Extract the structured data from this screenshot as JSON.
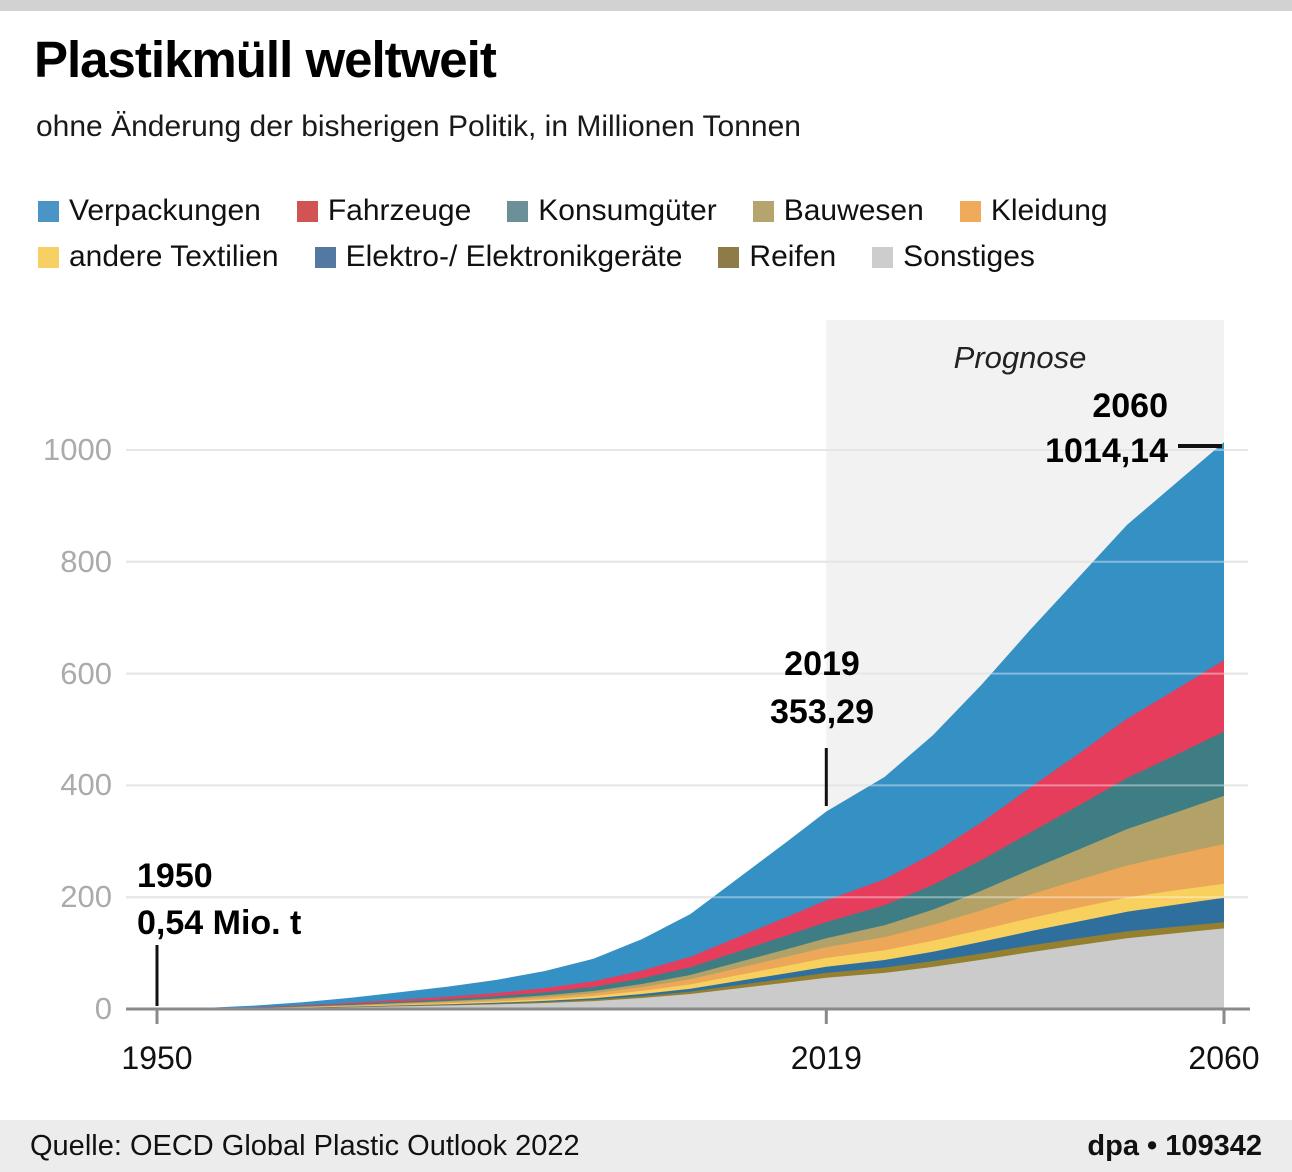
{
  "header": {
    "title": "Plastikmüll weltweit",
    "subtitle": "ohne Änderung der bisherigen Politik, in Millionen Tonnen"
  },
  "footer": {
    "source": "Quelle: OECD Global Plastic Outlook 2022",
    "credit": "dpa • 109342"
  },
  "chart_data": {
    "type": "area",
    "stacked": true,
    "title": "Plastikmüll weltweit",
    "subtitle": "ohne Änderung der bisherigen Politik, in Millionen Tonnen",
    "unit": "Millionen Tonnen",
    "xlabel": "",
    "ylabel": "",
    "ylim": [
      0,
      1050
    ],
    "xlim": [
      1950,
      2060
    ],
    "grid": true,
    "legend_position": "top",
    "x": [
      1950,
      1955,
      1960,
      1965,
      1970,
      1975,
      1980,
      1985,
      1990,
      1995,
      2000,
      2005,
      2010,
      2015,
      2019,
      2025,
      2030,
      2035,
      2040,
      2045,
      2050,
      2055,
      2060
    ],
    "totals": [
      0.54,
      2,
      6,
      12,
      20,
      30,
      40,
      52,
      68,
      90,
      125,
      170,
      235,
      300,
      353.29,
      415,
      490,
      580,
      678,
      772,
      866,
      940,
      1014.14
    ],
    "series": [
      {
        "name": "Verpackungen",
        "swatch_color": "#4a94c8",
        "color": "#3590c4",
        "share_2019": 0.45,
        "share_2060": 0.3845,
        "value_2019": 159,
        "value_2060": 390
      },
      {
        "name": "Fahrzeuge",
        "swatch_color": "#d15452",
        "color": "#e63d5c",
        "share_2019": 0.11,
        "share_2060": 0.1262,
        "value_2019": 39,
        "value_2060": 128
      },
      {
        "name": "Konsumgüter",
        "swatch_color": "#6b9097",
        "color": "#3f7d85",
        "share_2019": 0.082,
        "share_2060": 0.1134,
        "value_2019": 29,
        "value_2060": 115
      },
      {
        "name": "Bauwesen",
        "swatch_color": "#b5a46e",
        "color": "#b3a268",
        "share_2019": 0.045,
        "share_2060": 0.0848,
        "value_2019": 16,
        "value_2060": 86
      },
      {
        "name": "Kleidung",
        "swatch_color": "#efaa5c",
        "color": "#eda758",
        "share_2019": 0.054,
        "share_2060": 0.07,
        "value_2019": 19,
        "value_2060": 71
      },
      {
        "name": "andere Textilien",
        "swatch_color": "#f6d063",
        "color": "#f8d05e",
        "share_2019": 0.045,
        "share_2060": 0.0247,
        "value_2019": 16,
        "value_2060": 25
      },
      {
        "name": "Elektro-/ Elektronikgeräte",
        "swatch_color": "#5379a3",
        "color": "#2f6f9e",
        "share_2019": 0.031,
        "share_2060": 0.0434,
        "value_2019": 11,
        "value_2060": 44
      },
      {
        "name": "Reifen",
        "swatch_color": "#8f7b47",
        "color": "#95802f",
        "share_2019": 0.025,
        "share_2060": 0.0108,
        "value_2019": 9,
        "value_2060": 11
      },
      {
        "name": "Sonstiges",
        "swatch_color": "#cdcdcd",
        "color": "#cbcbcb",
        "share_2019": 0.158,
        "share_2060": 0.1422,
        "value_2019": 55.8,
        "value_2060": 144
      }
    ],
    "series_note": "stack order top-to-bottom as listed; per-year series value = total × share, shares constant before 2019 and linearly interpolated 2019→2060",
    "forecast": {
      "label": "Prognose",
      "start_year": 2019,
      "end_year": 2060,
      "band_color": "#f2f2f2"
    },
    "annotations": {
      "y1950": {
        "line1": "1950",
        "line2": "0,54 Mio. t",
        "year": 1950,
        "value": 0.54
      },
      "y2019": {
        "line1": "2019",
        "line2": "353,29",
        "year": 2019,
        "value": 353.29
      },
      "y2060": {
        "line1": "2060",
        "line2": "1014,14",
        "year": 2060,
        "value": 1014.14
      }
    },
    "x_ticks": [
      {
        "year": 1950,
        "label": "1950"
      },
      {
        "year": 2019,
        "label": "2019"
      },
      {
        "year": 2060,
        "label": "2060"
      }
    ],
    "y_ticks": [
      {
        "value": 1000,
        "label": "1000"
      },
      {
        "value": 800,
        "label": "800"
      },
      {
        "value": 600,
        "label": "600"
      },
      {
        "value": 400,
        "label": "400"
      },
      {
        "value": 200,
        "label": "200"
      },
      {
        "value": 0,
        "label": "0"
      }
    ],
    "colors": {
      "grid": "#d6d6d6",
      "axis": "#8a8a8a",
      "marker": "#111111",
      "y_tick_text": "#ababab"
    }
  }
}
